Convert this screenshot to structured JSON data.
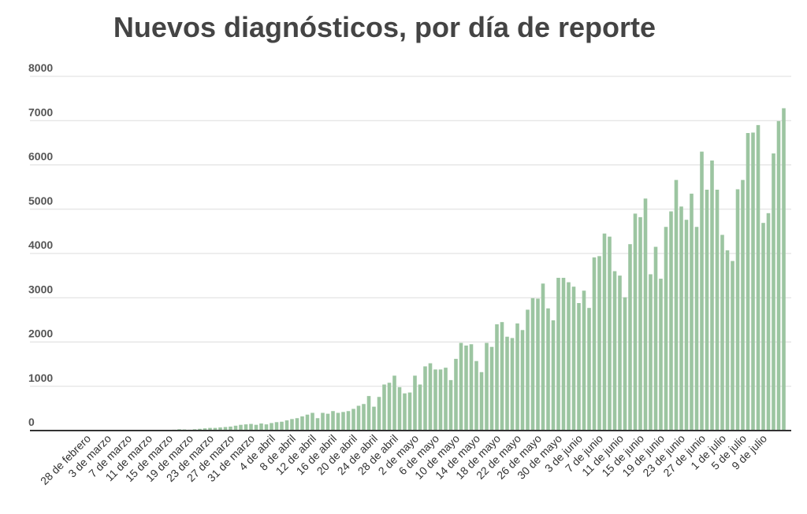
{
  "chart_data": {
    "type": "bar",
    "title": "Nuevos diagnósticos, por día de reporte",
    "xlabel": "",
    "ylabel": "",
    "ylim": [
      0,
      8000
    ],
    "yticks": [
      0,
      1000,
      2000,
      3000,
      4000,
      5000,
      6000,
      7000,
      8000
    ],
    "grid": true,
    "bar_color": "#9cc5a1",
    "tick_labels": [
      "28 de febrero",
      "3 de marzo",
      "7 de marzo",
      "11 de marzo",
      "15 de marzo",
      "19 de marzo",
      "23 de marzo",
      "27 de marzo",
      "31 de marzo",
      "4 de abril",
      "8 de abril",
      "12 de abril",
      "16 de abril",
      "20 de abril",
      "24 de abril",
      "28 de abril",
      "2 de mayo",
      "6 de mayo",
      "10 de mayo",
      "14 de mayo",
      "18 de mayo",
      "22 de mayo",
      "26 de mayo",
      "30 de mayo",
      "3 de junio",
      "7 de junio",
      "11 de junio",
      "15 de junio",
      "19 de junio",
      "23 de junio",
      "27 de junio",
      "1 de julio",
      "5 de julio",
      "9 de julio"
    ],
    "values": [
      0,
      0,
      0,
      0,
      0,
      0,
      0,
      0,
      0,
      0,
      0,
      0,
      0,
      0,
      0,
      0,
      0,
      0,
      0,
      0,
      0,
      0,
      20,
      30,
      25,
      20,
      30,
      40,
      50,
      60,
      60,
      70,
      80,
      90,
      110,
      130,
      140,
      150,
      130,
      160,
      140,
      170,
      190,
      200,
      230,
      260,
      280,
      320,
      360,
      400,
      280,
      400,
      380,
      440,
      400,
      420,
      440,
      490,
      560,
      600,
      780,
      540,
      760,
      1040,
      1080,
      1240,
      980,
      840,
      860,
      1240,
      1040,
      1450,
      1520,
      1380,
      1380,
      1420,
      1140,
      1620,
      1980,
      1920,
      1950,
      1570,
      1320,
      1980,
      1890,
      2400,
      2450,
      2120,
      2090,
      2420,
      2270,
      2730,
      2990,
      2980,
      3320,
      2760,
      2490,
      3450,
      3450,
      3350,
      3250,
      2880,
      3160,
      2770,
      3910,
      3940,
      4450,
      4380,
      3600,
      3500,
      3010,
      4210,
      4900,
      4820,
      5240,
      3530,
      4150,
      3430,
      4600,
      4950,
      5660,
      5060,
      4760,
      5350,
      4600,
      6300,
      5440,
      6100,
      5440,
      4420,
      4070,
      3830,
      5450,
      5660,
      6720,
      6730,
      6900,
      4690,
      4910,
      6260,
      6990,
      7280
    ]
  }
}
